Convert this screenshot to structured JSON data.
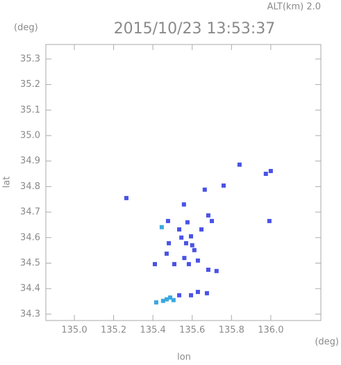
{
  "chart_data": {
    "type": "scatter",
    "title": "2015/10/23 13:53:37",
    "altitude_label": "ALT(km) 2.0",
    "x_label": "lon",
    "y_label": "lat",
    "x_unit": "(deg)",
    "y_unit": "(deg)",
    "xlim": [
      134.855,
      136.255
    ],
    "ylim": [
      34.275,
      35.357
    ],
    "xticks": [
      {
        "value": 135.0,
        "label": "135.0"
      },
      135.2,
      135.4,
      135.6,
      135.8,
      {
        "value": 136.0,
        "label": "136.0"
      }
    ],
    "yticks": [
      34.3,
      34.4,
      34.5,
      34.6,
      34.7,
      34.8,
      34.9,
      {
        "value": 35.0,
        "label": "35.0"
      },
      35.1,
      35.2,
      35.3
    ],
    "series": [
      {
        "color": "#4a52e6",
        "x": [
          135.265,
          135.841,
          135.975,
          136.0,
          135.664,
          135.76,
          135.993,
          135.481,
          135.477,
          135.558,
          135.576,
          135.594,
          135.611,
          135.583,
          135.629,
          135.682,
          135.7,
          135.647,
          135.724,
          135.682,
          135.569,
          135.534,
          135.509,
          135.47,
          135.675,
          135.629,
          135.594,
          135.534,
          135.41,
          135.56,
          135.6,
          135.545
        ],
        "values": [
          34.755,
          34.886,
          34.85,
          34.861,
          34.788,
          34.804,
          34.665,
          34.578,
          34.665,
          34.73,
          34.66,
          34.605,
          34.551,
          34.496,
          34.51,
          34.687,
          34.665,
          34.632,
          34.469,
          34.474,
          34.578,
          34.632,
          34.496,
          34.537,
          34.382,
          34.387,
          34.374,
          34.374,
          34.496,
          34.52,
          34.57,
          34.6
        ]
      },
      {
        "color": "#39a9e0",
        "x": [
          135.445,
          135.488,
          135.452,
          135.417,
          135.505,
          135.47
        ],
        "values": [
          34.641,
          34.365,
          34.352,
          34.346,
          34.355,
          34.358
        ]
      }
    ]
  }
}
